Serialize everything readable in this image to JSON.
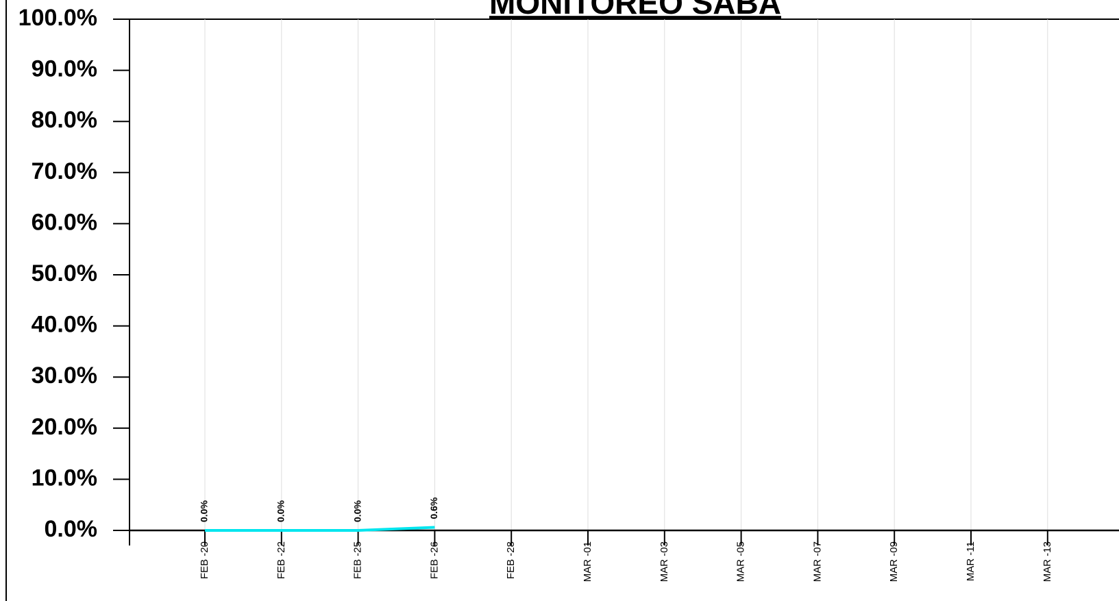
{
  "chart_data": {
    "type": "line",
    "title": "MONITOREO SABA",
    "categories": [
      "FEB -20",
      "FEB -22",
      "FEB -25",
      "FEB -26",
      "FEB -28",
      "MAR -01",
      "MAR -03",
      "MAR -05",
      "MAR -07",
      "MAR -09",
      "MAR -11",
      "MAR -13"
    ],
    "series": [
      {
        "color": "#00e5ee",
        "values": [
          0,
          0,
          0,
          0.6,
          null,
          null,
          null,
          null,
          null,
          null,
          null,
          null
        ],
        "value_labels": [
          "0.0%",
          "0.0%",
          "0.0%",
          "0.6%",
          null,
          null,
          null,
          null,
          null,
          null,
          null,
          null
        ]
      }
    ],
    "ylim": [
      0,
      100
    ],
    "yticks": [
      {
        "value": 0,
        "label": "0.0%"
      },
      {
        "value": 10,
        "label": "10.0%"
      },
      {
        "value": 20,
        "label": "20.0%"
      },
      {
        "value": 30,
        "label": "30.0%"
      },
      {
        "value": 40,
        "label": "40.0%"
      },
      {
        "value": 50,
        "label": "50.0%"
      },
      {
        "value": 60,
        "label": "60.0%"
      },
      {
        "value": 70,
        "label": "70.0%"
      },
      {
        "value": 80,
        "label": "80.0%"
      },
      {
        "value": 90,
        "label": "90.0%"
      },
      {
        "value": 100,
        "label": "100.0%"
      }
    ],
    "grid": true
  }
}
